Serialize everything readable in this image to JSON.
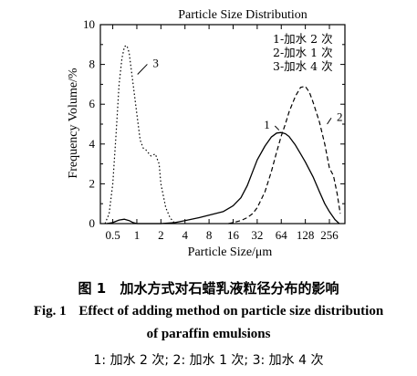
{
  "chart_data": {
    "type": "line",
    "title": "Particle Size Distribution",
    "xlabel": "Particle Size/μm",
    "ylabel": "Frequency Volume/%",
    "x_scale": "log2",
    "xlim": [
      0.35,
      400
    ],
    "ylim": [
      0,
      10
    ],
    "x_ticks": [
      "0.5",
      "1",
      "2",
      "4",
      "8",
      "16",
      "32",
      "64",
      "128",
      "256"
    ],
    "y_ticks": [
      "0",
      "2",
      "4",
      "6",
      "8",
      "10"
    ],
    "legend": {
      "position": "top-right",
      "entries": [
        "1-加水 2 次",
        "2-加水 1 次",
        "3-加水 4 次"
      ]
    },
    "series": [
      {
        "name": "1",
        "style": "solid",
        "x": [
          0.42,
          0.5,
          0.6,
          0.7,
          0.8,
          0.9,
          1.0,
          1.5,
          2,
          3,
          4,
          6,
          8,
          12,
          16,
          20,
          24,
          28,
          32,
          40,
          48,
          56,
          64,
          72,
          80,
          96,
          112,
          128,
          160,
          192,
          224,
          256,
          300,
          340
        ],
        "y": [
          0,
          0.05,
          0.18,
          0.22,
          0.15,
          0.05,
          0,
          0,
          0,
          0.05,
          0.15,
          0.3,
          0.42,
          0.6,
          0.9,
          1.3,
          1.9,
          2.6,
          3.2,
          3.9,
          4.35,
          4.55,
          4.58,
          4.52,
          4.38,
          3.95,
          3.5,
          3.1,
          2.35,
          1.6,
          1.0,
          0.6,
          0.2,
          0
        ]
      },
      {
        "name": "2",
        "style": "dashed",
        "x": [
          14,
          16,
          20,
          24,
          28,
          32,
          40,
          48,
          56,
          64,
          72,
          80,
          96,
          112,
          128,
          144,
          160,
          192,
          224,
          256,
          288,
          320,
          350
        ],
        "y": [
          0,
          0.05,
          0.15,
          0.3,
          0.5,
          0.8,
          1.6,
          2.6,
          3.6,
          4.4,
          5.0,
          5.6,
          6.4,
          6.85,
          6.9,
          6.6,
          6.1,
          5.1,
          4.0,
          2.8,
          2.4,
          1.5,
          0.5
        ]
      },
      {
        "name": "3",
        "style": "dotted",
        "x": [
          0.4,
          0.45,
          0.5,
          0.55,
          0.6,
          0.65,
          0.7,
          0.75,
          0.8,
          0.9,
          1.0,
          1.1,
          1.2,
          1.3,
          1.5,
          1.7,
          1.9,
          2.0,
          2.3,
          2.6,
          3.0
        ],
        "y": [
          0,
          0.5,
          2.0,
          4.5,
          7.0,
          8.3,
          8.9,
          8.95,
          8.6,
          7.0,
          5.5,
          4.2,
          3.8,
          3.7,
          3.4,
          3.5,
          3.0,
          2.0,
          0.8,
          0.3,
          0
        ]
      }
    ],
    "annotations": [
      {
        "text": "1",
        "x": 48,
        "y": 5.0,
        "arrow_x": 60,
        "arrow_y": 4.7
      },
      {
        "text": "2",
        "x": 300,
        "y": 5.4,
        "arrow_x": 240,
        "arrow_y": 5.0
      },
      {
        "text": "3",
        "x": 1.5,
        "y": 8.1,
        "arrow_x": 1.02,
        "arrow_y": 7.5
      }
    ]
  },
  "caption": {
    "cn_number": "图 1",
    "cn_text": "加水方式对石蜡乳液粒径分布的影响",
    "en_number": "Fig. 1",
    "en_text_line1": "Effect of adding method on particle size distribution",
    "en_text_line2": "of paraffin emulsions",
    "note": "1: 加水 2 次; 2: 加水 1 次; 3: 加水 4 次"
  }
}
